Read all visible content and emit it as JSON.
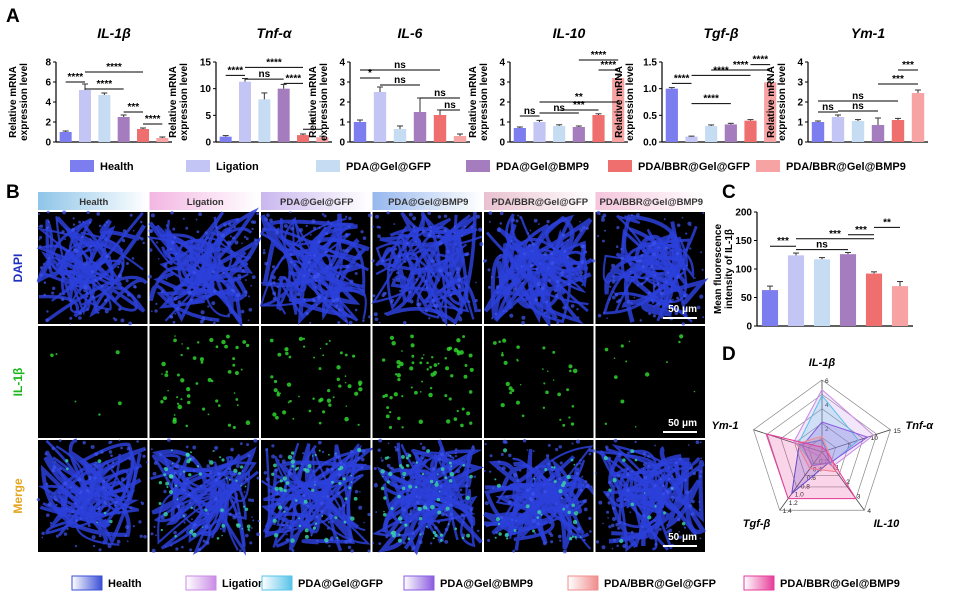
{
  "panel_labels": {
    "a": "A",
    "b": "B",
    "c": "C",
    "d": "D"
  },
  "bar_ylabel": "Relative mRNA expression level",
  "colors": {
    "Health": "#7c7ef0",
    "Ligation": "#c3c6f4",
    "PDA@Gel@GFP": "#c6dcf3",
    "PDA@Gel@BMP9": "#a57cbd",
    "PDA/BBR@Gel@GFP": "#ee6f6d",
    "PDA/BBR@Gel@BMP9": "#f7a3a3"
  },
  "legend_a": [
    "Health",
    "Ligation",
    "PDA@Gel@GFP",
    "PDA@Gel@BMP9",
    "PDA/BBR@Gel@GFP",
    "PDA/BBR@Gel@BMP9"
  ],
  "chart_data": [
    {
      "type": "bar",
      "title": "IL-1β",
      "categories": [
        "Health",
        "Ligation",
        "PDA@Gel@GFP",
        "PDA@Gel@BMP9",
        "PDA/BBR@Gel@GFP",
        "PDA/BBR@Gel@BMP9"
      ],
      "values": [
        1.0,
        5.2,
        4.7,
        2.5,
        1.3,
        0.4
      ],
      "errors": [
        0.1,
        0.6,
        0.2,
        0.2,
        0.1,
        0.1
      ],
      "ylim": [
        0,
        8
      ],
      "yticks": [
        "0",
        "2",
        "4",
        "6",
        "8"
      ],
      "ylabel": "Relative mRNA expression level",
      "annotations": [
        {
          "label": "****",
          "from": 0,
          "to": 1,
          "y": 6.0
        },
        {
          "label": "****",
          "from": 1,
          "to": 3,
          "y": 5.3
        },
        {
          "label": "****",
          "from": 1,
          "to": 4,
          "y": 7.0
        },
        {
          "label": "***",
          "from": 3,
          "to": 4,
          "y": 3.0
        },
        {
          "label": "****",
          "from": 4,
          "to": 5,
          "y": 1.8
        }
      ]
    },
    {
      "type": "bar",
      "title": "Tnf-α",
      "categories": [
        "Health",
        "Ligation",
        "PDA@Gel@GFP",
        "PDA@Gel@BMP9",
        "PDA/BBR@Gel@GFP",
        "PDA/BBR@Gel@BMP9"
      ],
      "values": [
        1.0,
        11.3,
        8.0,
        10.0,
        1.3,
        0.9
      ],
      "errors": [
        0.2,
        0.6,
        1.2,
        0.8,
        0.2,
        0.2
      ],
      "ylim": [
        0,
        15
      ],
      "yticks": [
        "0",
        "5",
        "10",
        "15"
      ],
      "ylabel": "Relative mRNA expression level",
      "annotations": [
        {
          "label": "****",
          "from": 0,
          "to": 1,
          "y": 12.5
        },
        {
          "label": "ns",
          "from": 1,
          "to": 3,
          "y": 11.8
        },
        {
          "label": "****",
          "from": 1,
          "to": 4,
          "y": 14.0
        },
        {
          "label": "****",
          "from": 3,
          "to": 4,
          "y": 11.0
        },
        {
          "label": "*",
          "from": 4,
          "to": 5,
          "y": 2.4
        }
      ]
    },
    {
      "type": "bar",
      "title": "IL-6",
      "categories": [
        "Health",
        "Ligation",
        "PDA@Gel@GFP",
        "PDA@Gel@BMP9",
        "PDA/BBR@Gel@GFP",
        "PDA/BBR@Gel@BMP9"
      ],
      "values": [
        1.0,
        2.5,
        0.65,
        1.5,
        1.35,
        0.3
      ],
      "errors": [
        0.1,
        0.25,
        0.15,
        0.7,
        0.25,
        0.1
      ],
      "ylim": [
        0,
        4
      ],
      "yticks": [
        "0",
        "1",
        "2",
        "3",
        "4"
      ],
      "ylabel": "Relative mRNA expression level",
      "annotations": [
        {
          "label": "*",
          "from": 0,
          "to": 1,
          "y": 3.2
        },
        {
          "label": "ns",
          "from": 0,
          "to": 4,
          "y": 3.6
        },
        {
          "label": "ns",
          "from": 1,
          "to": 3,
          "y": 2.85
        },
        {
          "label": "ns",
          "from": 3,
          "to": 5,
          "y": 2.2
        },
        {
          "label": "ns",
          "from": 4,
          "to": 5,
          "y": 1.6
        }
      ]
    },
    {
      "type": "bar",
      "title": "IL-10",
      "categories": [
        "Health",
        "Ligation",
        "PDA@Gel@GFP",
        "PDA@Gel@BMP9",
        "PDA/BBR@Gel@GFP",
        "PDA/BBR@Gel@BMP9"
      ],
      "values": [
        0.7,
        1.0,
        0.8,
        0.75,
        1.35,
        3.2
      ],
      "errors": [
        0.05,
        0.08,
        0.06,
        0.05,
        0.06,
        0.2
      ],
      "ylim": [
        0,
        4
      ],
      "yticks": [
        "0",
        "1",
        "2",
        "3",
        "4"
      ],
      "ylabel": "Relative mRNA expression level",
      "annotations": [
        {
          "label": "ns",
          "from": 0,
          "to": 1,
          "y": 1.3
        },
        {
          "label": "ns",
          "from": 1,
          "to": 3,
          "y": 1.45
        },
        {
          "label": "***",
          "from": 2,
          "to": 4,
          "y": 1.6
        },
        {
          "label": "**",
          "from": 1,
          "to": 5,
          "y": 2.0
        },
        {
          "label": "****",
          "from": 4,
          "to": 5,
          "y": 3.6
        },
        {
          "label": "****",
          "from": 3,
          "to": 5,
          "y": 4.1
        }
      ]
    },
    {
      "type": "bar",
      "title": "Tgf-β",
      "categories": [
        "Health",
        "Ligation",
        "PDA@Gel@GFP",
        "PDA@Gel@BMP9",
        "PDA/BBR@Gel@GFP",
        "PDA/BBR@Gel@BMP9"
      ],
      "values": [
        1.0,
        0.1,
        0.3,
        0.33,
        0.4,
        1.12
      ],
      "errors": [
        0.02,
        0.01,
        0.02,
        0.02,
        0.02,
        0.04
      ],
      "ylim": [
        0,
        1.5
      ],
      "yticks": [
        "0.0",
        "0.5",
        "1.0",
        "1.5"
      ],
      "ylabel": "Relative mRNA expression level",
      "annotations": [
        {
          "label": "****",
          "from": 0,
          "to": 1,
          "y": 1.1
        },
        {
          "label": "****",
          "from": 1,
          "to": 3,
          "y": 0.72
        },
        {
          "label": "****",
          "from": 1,
          "to": 4,
          "y": 1.25
        },
        {
          "label": "****",
          "from": 2,
          "to": 5,
          "y": 1.35
        },
        {
          "label": "****",
          "from": 4,
          "to": 5,
          "y": 1.45
        }
      ]
    },
    {
      "type": "bar",
      "title": "Ym-1",
      "categories": [
        "Health",
        "Ligation",
        "PDA@Gel@GFP",
        "PDA@Gel@BMP9",
        "PDA/BBR@Gel@GFP",
        "PDA/BBR@Gel@BMP9"
      ],
      "values": [
        1.0,
        1.25,
        1.05,
        0.85,
        1.1,
        2.45
      ],
      "errors": [
        0.05,
        0.1,
        0.07,
        0.35,
        0.08,
        0.15
      ],
      "ylim": [
        0,
        4
      ],
      "yticks": [
        "0",
        "1",
        "2",
        "3",
        "4"
      ],
      "ylabel": "Relative mRNA expression level",
      "annotations": [
        {
          "label": "ns",
          "from": 0,
          "to": 1,
          "y": 1.5
        },
        {
          "label": "ns",
          "from": 1,
          "to": 3,
          "y": 1.55
        },
        {
          "label": "ns",
          "from": 0,
          "to": 4,
          "y": 2.05
        },
        {
          "label": "***",
          "from": 3,
          "to": 5,
          "y": 2.9
        },
        {
          "label": "***",
          "from": 4,
          "to": 5,
          "y": 3.6
        }
      ]
    },
    {
      "type": "bar",
      "title": "",
      "categories": [
        "Health",
        "Ligation",
        "PDA@Gel@GFP",
        "PDA@Gel@BMP9",
        "PDA/BBR@Gel@GFP",
        "PDA/BBR@Gel@BMP9"
      ],
      "values": [
        63,
        124,
        117,
        126,
        92,
        70
      ],
      "errors": [
        7,
        4,
        3,
        3,
        3,
        8
      ],
      "ylim": [
        0,
        200
      ],
      "yticks": [
        "0",
        "50",
        "100",
        "150",
        "200"
      ],
      "ylabel": "Mean fluorescence intensity of IL-1β",
      "annotations": [
        {
          "label": "***",
          "from": 0,
          "to": 1,
          "y": 140
        },
        {
          "label": "ns",
          "from": 1,
          "to": 3,
          "y": 134
        },
        {
          "label": "***",
          "from": 1,
          "to": 4,
          "y": 153
        },
        {
          "label": "***",
          "from": 3,
          "to": 4,
          "y": 160
        },
        {
          "label": "**",
          "from": 4,
          "to": 5,
          "y": 173
        }
      ]
    },
    {
      "type": "radar",
      "axes": [
        {
          "label": "IL-1β",
          "max": 6,
          "ticks": [
            "2",
            "4",
            "6"
          ]
        },
        {
          "label": "Tnf-α",
          "max": 15,
          "ticks": [
            "5",
            "10",
            "15"
          ]
        },
        {
          "label": "IL-10",
          "max": 4,
          "ticks": [
            "1",
            "2",
            "3",
            "4"
          ]
        },
        {
          "label": "Tgf-β",
          "max": 1.4,
          "ticks": [
            "0.2",
            "0.4",
            "0.6",
            "0.8",
            "1.0",
            "1.2",
            "1.4"
          ]
        },
        {
          "label": "Ym-1",
          "max": 3,
          "ticks": []
        }
      ],
      "series": [
        {
          "name": "Health",
          "values": [
            1.0,
            1.0,
            0.7,
            1.0,
            1.0
          ],
          "color": "#3a4fd6"
        },
        {
          "name": "Ligation",
          "values": [
            5.2,
            11.3,
            1.0,
            0.1,
            1.25
          ],
          "color": "#c98be6"
        },
        {
          "name": "PDA@Gel@GFP",
          "values": [
            4.7,
            8.0,
            0.8,
            0.3,
            1.05
          ],
          "color": "#57c3e8"
        },
        {
          "name": "PDA@Gel@BMP9",
          "values": [
            2.5,
            10.0,
            0.75,
            0.33,
            0.85
          ],
          "color": "#8a5be0"
        },
        {
          "name": "PDA/BBR@Gel@GFP",
          "values": [
            1.3,
            1.3,
            1.35,
            0.4,
            1.1
          ],
          "color": "#f08c8c"
        },
        {
          "name": "PDA/BBR@Gel@BMP9",
          "values": [
            0.4,
            0.9,
            3.2,
            1.12,
            2.45
          ],
          "color": "#e63c9a"
        }
      ]
    }
  ],
  "micrograph": {
    "columns": [
      "Health",
      "Ligation",
      "PDA@Gel@GFP",
      "PDA@Gel@BMP9",
      "PDA/BBR@Gel@GFP",
      "PDA/BBR@Gel@BMP9"
    ],
    "header_colors": [
      "#8ec5e8",
      "#f3b6e3",
      "#c9b7ef",
      "#96b7ee",
      "#e9c0cf",
      "#f5c5dc"
    ],
    "rows": [
      {
        "label": "DAPI",
        "color": "#1f2fc0"
      },
      {
        "label": "IL-1β",
        "color": "#1db51d"
      },
      {
        "label": "Merge",
        "color": "#e6a51e"
      }
    ],
    "scale_bar": "50 μm"
  },
  "legend_d": [
    {
      "name": "Health",
      "color": "#3a4fd6"
    },
    {
      "name": "Ligation",
      "color": "#c98be6"
    },
    {
      "name": "PDA@Gel@GFP",
      "color": "#57c3e8"
    },
    {
      "name": "PDA@Gel@BMP9",
      "color": "#8a5be0"
    },
    {
      "name": "PDA/BBR@Gel@GFP",
      "color": "#f08c8c"
    },
    {
      "name": "PDA/BBR@Gel@BMP9",
      "color": "#e63c9a"
    }
  ]
}
